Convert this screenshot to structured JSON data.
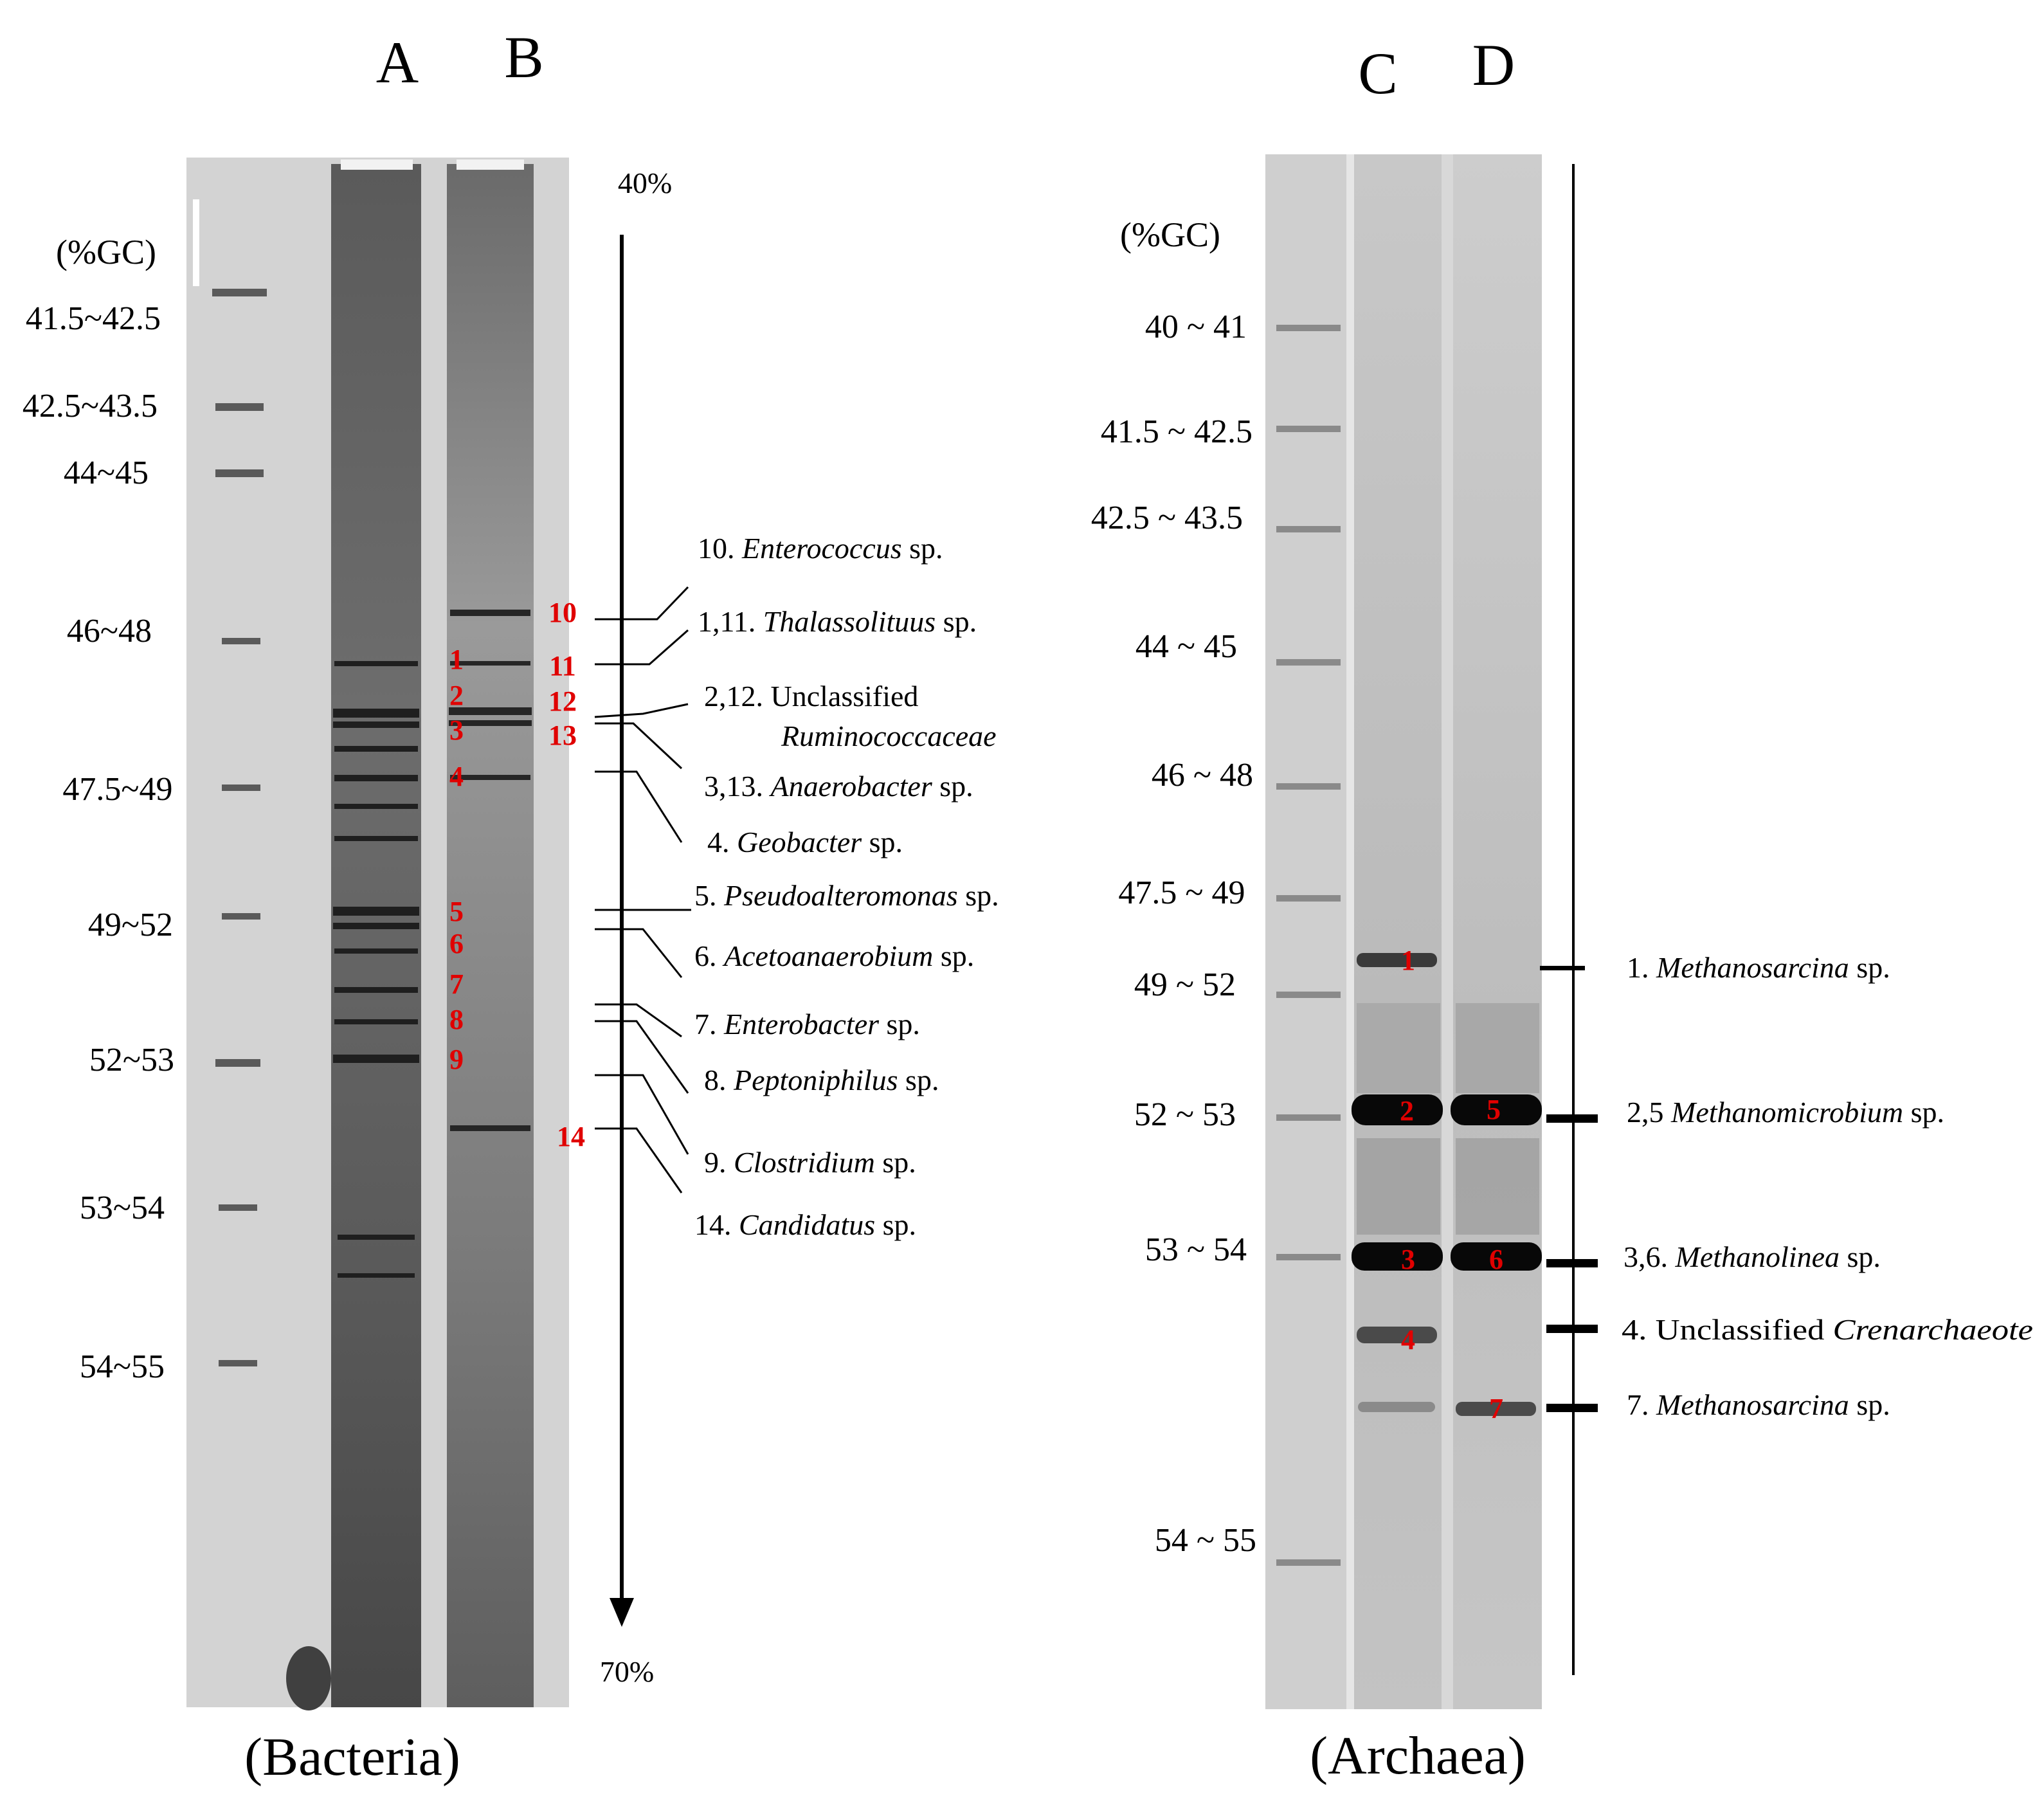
{
  "bacteria": {
    "caption": "(Bacteria)",
    "lanes": [
      "A",
      "B"
    ],
    "gc_header": "(%GC)",
    "gradient_top": "40%",
    "gradient_bottom": "70%",
    "ladder": [
      "41.5~42.5",
      "42.5~43.5",
      "44~45",
      "46~48",
      "47.5~49",
      "49~52",
      "52~53",
      "53~54",
      "54~55"
    ],
    "bands_lane_a": [
      "1",
      "2",
      "3",
      "4",
      "5",
      "6",
      "7",
      "8",
      "9"
    ],
    "bands_lane_b": [
      "10",
      "11",
      "12",
      "13",
      "14"
    ],
    "species": [
      {
        "num": "10.",
        "name": "Enterococcus",
        "suffix": "sp."
      },
      {
        "num": "1,11.",
        "name": "Thalassolituus",
        "suffix": "sp."
      },
      {
        "num": "2,12. Unclassified",
        "name": "Ruminococcaceae",
        "suffix": ""
      },
      {
        "num": "3,13.",
        "name": "Anaerobacter",
        "suffix": "sp."
      },
      {
        "num": "4.",
        "name": "Geobacter",
        "suffix": "sp."
      },
      {
        "num": "5.",
        "name": "Pseudoalteromonas",
        "suffix": "sp."
      },
      {
        "num": "6.",
        "name": "Acetoanaerobium",
        "suffix": "sp."
      },
      {
        "num": "7.",
        "name": "Enterobacter",
        "suffix": "sp."
      },
      {
        "num": "8.",
        "name": "Peptoniphilus",
        "suffix": "sp."
      },
      {
        "num": "9.",
        "name": "Clostridium",
        "suffix": "sp."
      },
      {
        "num": "14.",
        "name": "Candidatus",
        "suffix": "sp."
      }
    ]
  },
  "archaea": {
    "caption": "(Archaea)",
    "lanes": [
      "C",
      "D"
    ],
    "gc_header": "(%GC)",
    "ladder": [
      "40 ~ 41",
      "41.5 ~ 42.5",
      "42.5 ~ 43.5",
      "44 ~ 45",
      "46 ~ 48",
      "47.5 ~ 49",
      "49 ~ 52",
      "52 ~ 53",
      "53 ~ 54",
      "54 ~ 55"
    ],
    "bands_lane_c": [
      "1",
      "2",
      "3",
      "4"
    ],
    "bands_lane_d": [
      "5",
      "6",
      "7"
    ],
    "species": [
      {
        "num": "1.",
        "name": "Methanosarcina",
        "suffix": "sp."
      },
      {
        "num": "2,5",
        "name": "Methanomicrobium",
        "suffix": "sp."
      },
      {
        "num": "3,6.",
        "name": "Methanolinea",
        "suffix": "sp."
      },
      {
        "num": "4. Unclassified",
        "name": "Crenarchaeote",
        "suffix": ""
      },
      {
        "num": "7.",
        "name": "Methanosarcina",
        "suffix": "sp."
      }
    ]
  },
  "colors": {
    "gel_background": "#cfcfcf",
    "band_dark": "#1a1a1a",
    "band_number": "#e00000"
  }
}
